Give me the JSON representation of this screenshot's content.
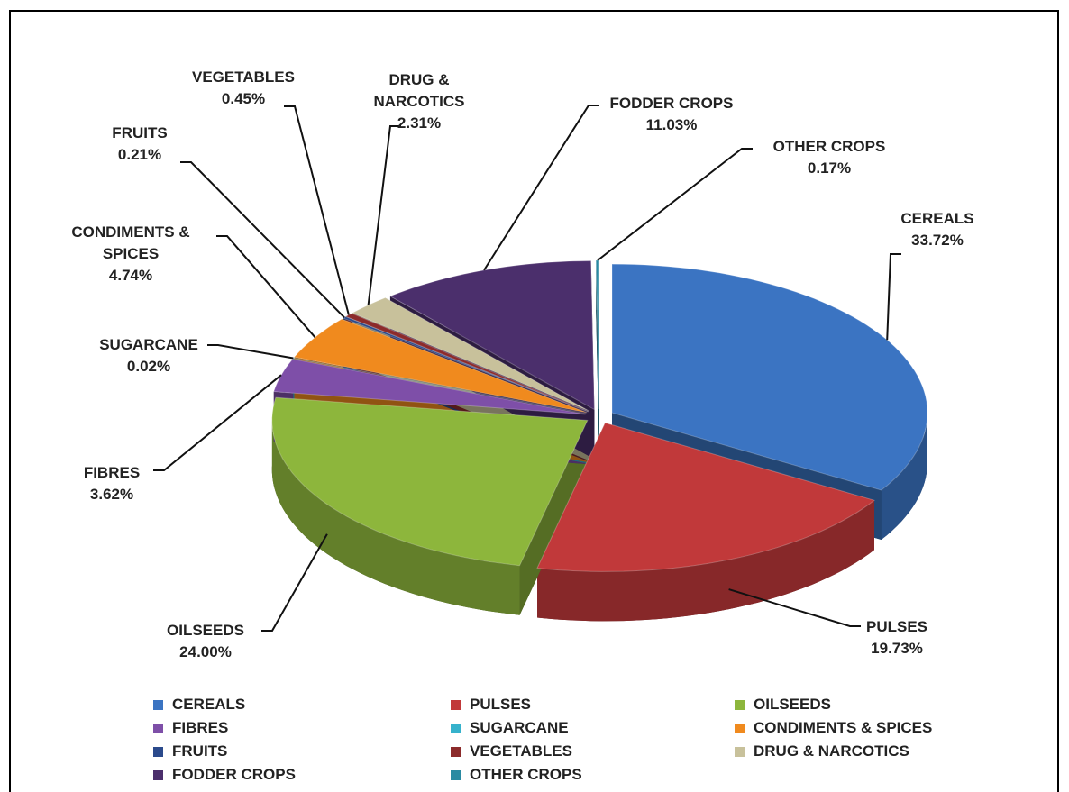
{
  "chart_data": {
    "type": "pie",
    "categories": [
      "CEREALS",
      "PULSES",
      "OILSEEDS",
      "FIBRES",
      "SUGARCANE",
      "CONDIMENTS & SPICES",
      "FRUITS",
      "VEGETABLES",
      "DRUG & NARCOTICS",
      "FODDER CROPS",
      "OTHER CROPS"
    ],
    "values": [
      33.72,
      19.73,
      24.0,
      3.62,
      0.02,
      4.74,
      0.21,
      0.45,
      2.31,
      11.03,
      0.17
    ],
    "value_labels": [
      "33.72%",
      "19.73%",
      "24.00%",
      "3.62%",
      "0.02%",
      "4.74%",
      "0.21%",
      "0.45%",
      "2.31%",
      "11.03%",
      "0.17%"
    ],
    "colors": [
      "#3b74c2",
      "#c1393a",
      "#8db63c",
      "#7e4fa8",
      "#36b2cc",
      "#f08a1e",
      "#2b4a8c",
      "#8c2b2b",
      "#c8c19b",
      "#4b2f6c",
      "#2a8aa2"
    ],
    "legend": "bottom"
  }
}
